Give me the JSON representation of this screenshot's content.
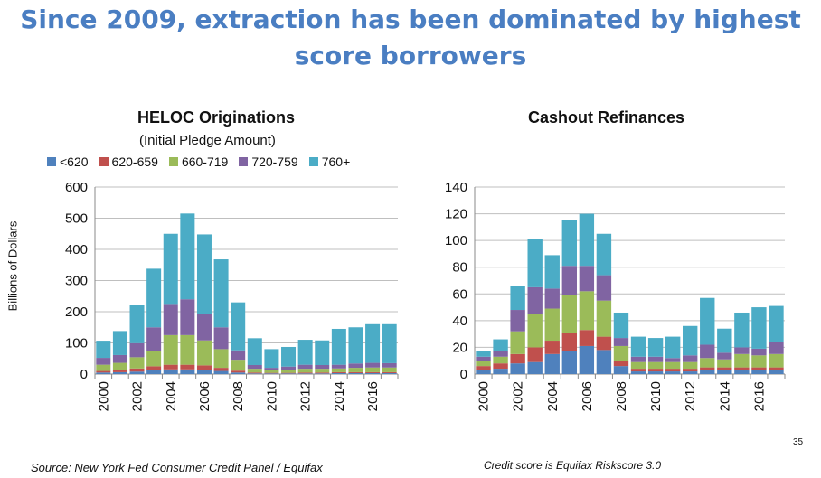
{
  "slide": {
    "title_line1": "Since 2009, extraction has been dominated by highest",
    "title_line2": "score borrowers",
    "source": "Source: New York Fed Consumer Credit Panel / Equifax",
    "note": "Credit score is Equifax Riskscore 3.0",
    "page_number": "35"
  },
  "colors": {
    "<620": "#4f81bd",
    "620-659": "#c0504d",
    "660-719": "#9bbb59",
    "720-759": "#8064a2",
    "760+": "#4bacc6"
  },
  "chart_data": [
    {
      "type": "bar",
      "stacked": true,
      "title": "HELOC Originations",
      "subtitle": "(Initial Pledge Amount)",
      "ylabel": "Billions of Dollars",
      "xlabel": "",
      "ylim": [
        0,
        600
      ],
      "yticks": [
        "0",
        "100",
        "200",
        "300",
        "400",
        "500",
        "600"
      ],
      "xtick_labels": [
        "2000",
        "2002",
        "2004",
        "2006",
        "2008",
        "2010",
        "2012",
        "2014",
        "2016"
      ],
      "categories": [
        "2000",
        "2001",
        "2002",
        "2003",
        "2004",
        "2005",
        "2006",
        "2007",
        "2008",
        "2009",
        "2010",
        "2011",
        "2012",
        "2013",
        "2014",
        "2015",
        "2016",
        "2017"
      ],
      "legend": [
        "<620",
        "620-659",
        "660-719",
        "720-759",
        "760+"
      ],
      "series": [
        {
          "name": "<620",
          "values": [
            5,
            6,
            8,
            12,
            15,
            15,
            14,
            10,
            5,
            2,
            2,
            2,
            2,
            2,
            3,
            3,
            3,
            3
          ]
        },
        {
          "name": "620-659",
          "values": [
            5,
            6,
            10,
            13,
            15,
            15,
            14,
            10,
            6,
            3,
            2,
            2,
            3,
            3,
            3,
            3,
            3,
            3
          ]
        },
        {
          "name": "660-719",
          "values": [
            20,
            24,
            36,
            50,
            95,
            95,
            80,
            60,
            35,
            12,
            8,
            10,
            12,
            12,
            12,
            14,
            15,
            15
          ]
        },
        {
          "name": "720-759",
          "values": [
            22,
            25,
            45,
            75,
            100,
            115,
            85,
            70,
            30,
            12,
            8,
            10,
            13,
            12,
            12,
            14,
            15,
            14
          ]
        },
        {
          "name": "760+",
          "values": [
            55,
            77,
            122,
            188,
            225,
            275,
            255,
            218,
            154,
            86,
            60,
            63,
            80,
            79,
            115,
            116,
            124,
            125
          ]
        }
      ]
    },
    {
      "type": "bar",
      "stacked": true,
      "title": "Cashout Refinances",
      "xlabel": "",
      "ylabel": "",
      "ylim": [
        0,
        140
      ],
      "yticks": [
        "0",
        "20",
        "40",
        "60",
        "80",
        "100",
        "120",
        "140"
      ],
      "xtick_labels": [
        "2000",
        "2002",
        "2004",
        "2006",
        "2008",
        "2010",
        "2012",
        "2014",
        "2016"
      ],
      "categories": [
        "2000",
        "2001",
        "2002",
        "2003",
        "2004",
        "2005",
        "2006",
        "2007",
        "2008",
        "2009",
        "2010",
        "2011",
        "2012",
        "2013",
        "2014",
        "2015",
        "2016",
        "2017"
      ],
      "series": [
        {
          "name": "<620",
          "values": [
            3,
            4,
            8,
            9,
            15,
            17,
            21,
            18,
            6,
            2,
            2,
            2,
            2,
            3,
            3,
            3,
            3,
            3
          ]
        },
        {
          "name": "620-659",
          "values": [
            3,
            4,
            7,
            11,
            10,
            14,
            12,
            10,
            4,
            2,
            2,
            2,
            2,
            2,
            2,
            2,
            2,
            2
          ]
        },
        {
          "name": "660-719",
          "values": [
            4,
            5,
            17,
            25,
            24,
            28,
            29,
            27,
            11,
            5,
            5,
            5,
            5,
            7,
            6,
            10,
            9,
            10
          ]
        },
        {
          "name": "720-759",
          "values": [
            3,
            4,
            16,
            20,
            15,
            22,
            19,
            19,
            6,
            4,
            4,
            3,
            5,
            10,
            5,
            5,
            5,
            9
          ]
        },
        {
          "name": "760+",
          "values": [
            4,
            9,
            18,
            36,
            25,
            34,
            39,
            31,
            19,
            15,
            14,
            16,
            22,
            35,
            18,
            26,
            31,
            27
          ]
        }
      ]
    }
  ]
}
